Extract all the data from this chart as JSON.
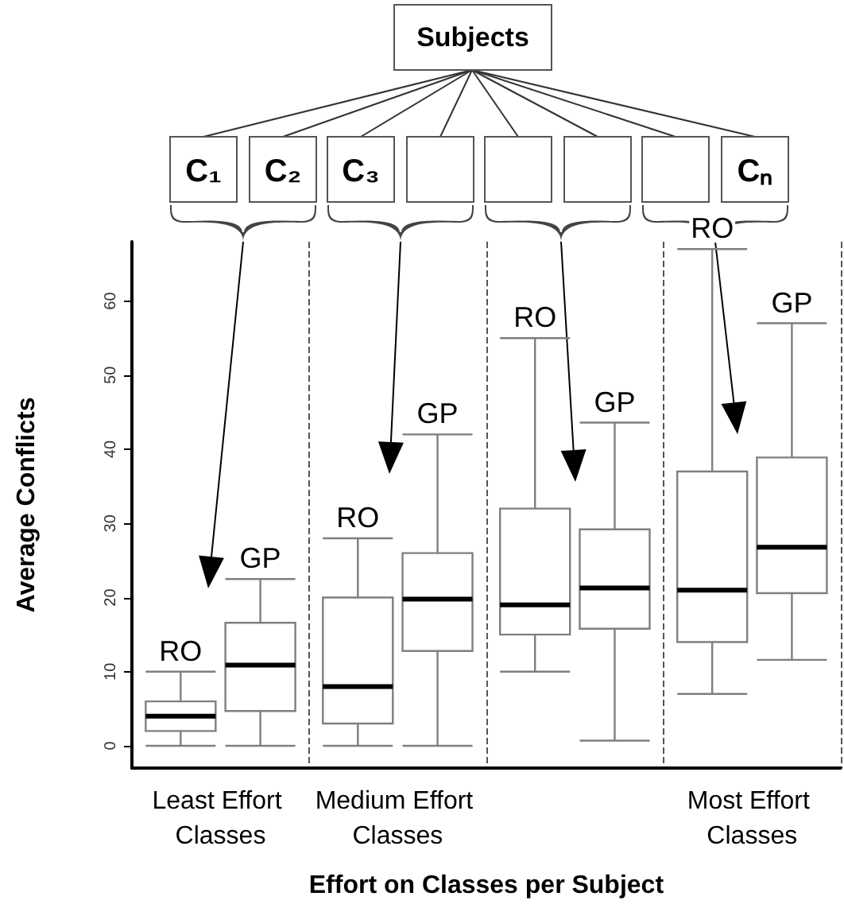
{
  "chart_data": {
    "type": "box",
    "xlabel": "Effort on Classes per Subject",
    "ylabel": "Average Conflicts",
    "categories": [
      "Least Effort Classes",
      "Medium Effort Classes",
      null,
      "Most Effort Classes"
    ],
    "ylim": [
      -3,
      68
    ],
    "yticks": [
      0,
      10,
      20,
      30,
      40,
      50,
      60
    ],
    "grid": "x",
    "legend": false,
    "annotations": [
      "Subjects",
      "C₁",
      "C₂",
      "C₃",
      "Cₙ"
    ],
    "series": [
      {
        "name": "RO",
        "color": "#7f7f7f",
        "boxes": [
          {
            "low": 0,
            "q1": 2,
            "median": 4,
            "q3": 6,
            "high": 10
          },
          {
            "low": 0,
            "q1": 3,
            "median": 8,
            "q3": 20,
            "high": 28
          },
          {
            "low": 10,
            "q1": 15,
            "median": 19,
            "q3": 32,
            "high": 55
          },
          {
            "low": 7,
            "q1": 14,
            "median": 21,
            "q3": 37,
            "high": 67
          }
        ]
      },
      {
        "name": "GP",
        "color": "#7f7f7f",
        "boxes": [
          {
            "low": 0,
            "q1": 4.7,
            "median": 10.9,
            "q3": 16.6,
            "high": 22.5
          },
          {
            "low": 0,
            "q1": 12.8,
            "median": 19.8,
            "q3": 26,
            "high": 42
          },
          {
            "low": 0.7,
            "q1": 15.8,
            "median": 21.3,
            "q3": 29.2,
            "high": 43.6
          },
          {
            "low": 11.6,
            "q1": 20.6,
            "median": 26.8,
            "q3": 38.9,
            "high": 57
          }
        ]
      }
    ]
  }
}
